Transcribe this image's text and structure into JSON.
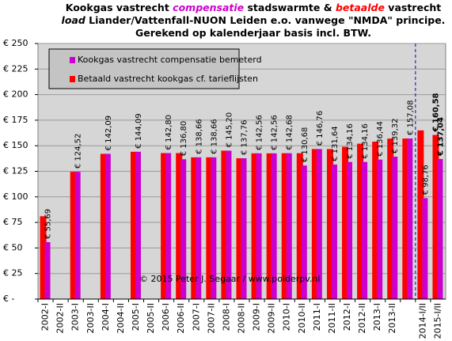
{
  "chart_data": {
    "type": "bar",
    "title": [
      [
        "Kookgas vastrecht ",
        "compensatie",
        " stadswarmte  &  ",
        "betaalde",
        " vastrecht"
      ],
      [
        "load",
        " Liander/Vattenfall-NUON Leiden e.o.  vanwege \"NMDA\"  principe."
      ],
      [
        "Gerekend op kalenderjaar basis incl. BTW."
      ]
    ],
    "annotation": "© 2015 Peter J. Segaar / www.polderpv.nl",
    "categories": [
      "2002-I",
      "2002-II",
      "2003-I",
      "2003-II",
      "2004-I",
      "2004-II",
      "2005-I",
      "2005-II",
      "2006-I",
      "2006-II",
      "2007-I",
      "2007-II",
      "2008-I",
      "2008-II",
      "2009-I",
      "2009-II",
      "2010-I",
      "2010-II",
      "2011-I",
      "2011-II",
      "2012-I",
      "2012-II",
      "2013-I",
      "2013-II",
      null,
      "2014-I/II",
      "2015-I/II"
    ],
    "series": [
      {
        "name": "Kookgas vastrecht compensatie bemeterd",
        "color": "#cc00cc",
        "values": [
          55.69,
          null,
          124.52,
          null,
          142.09,
          null,
          144.09,
          null,
          142.8,
          136.8,
          138.66,
          138.66,
          145.2,
          137.76,
          142.56,
          142.56,
          142.68,
          130.68,
          146.76,
          131.64,
          134.16,
          134.16,
          136.44,
          139.32,
          157.08,
          98.76,
          137.04
        ],
        "value_labels": [
          "€ 55,69",
          null,
          "€ 124,52",
          null,
          "€ 142,09",
          null,
          "€ 144,09",
          null,
          "€ 142,80",
          "€ 136,80",
          "€ 138,66",
          "€ 138,66",
          "€ 145,20",
          "€ 137,76",
          "€ 142,56",
          "€ 142,56",
          "€ 142,68",
          "€ 130,68",
          "€ 146,76",
          "€ 131,64",
          "€ 134,16",
          "€ 134,16",
          "€ 136,44",
          "€ 139,32",
          "€ 157,08",
          "€ 98,76",
          "€ 137,04"
        ]
      },
      {
        "name": "Betaald vastrecht kookgas cf. tarieflijsten",
        "color": "#ff0000",
        "values": [
          81,
          null,
          124.52,
          null,
          142.09,
          null,
          144.09,
          null,
          142.8,
          142.8,
          138.66,
          138.66,
          145.2,
          137.76,
          142.56,
          142.56,
          142.68,
          142.68,
          146.76,
          146.76,
          149,
          152,
          154,
          157,
          157.08,
          165,
          160.58
        ],
        "value_labels": [
          null,
          null,
          null,
          null,
          null,
          null,
          null,
          null,
          null,
          null,
          null,
          null,
          null,
          null,
          null,
          null,
          null,
          null,
          null,
          null,
          null,
          null,
          null,
          null,
          null,
          null,
          "€ 160,58"
        ]
      }
    ],
    "ylim": [
      0,
      250
    ],
    "yticks": [
      {
        "value": 0,
        "label": "€ -"
      },
      {
        "value": 25,
        "label": "€ 25"
      },
      {
        "value": 50,
        "label": "€ 50"
      },
      {
        "value": 75,
        "label": "€ 75"
      },
      {
        "value": 100,
        "label": "€ 100"
      },
      {
        "value": 125,
        "label": "€ 125"
      },
      {
        "value": 150,
        "label": "€ 150"
      },
      {
        "value": 175,
        "label": "€ 175"
      },
      {
        "value": 200,
        "label": "€ 200"
      },
      {
        "value": 225,
        "label": "€ 225"
      },
      {
        "value": 250,
        "label": "€ 250"
      }
    ],
    "grid": true
  }
}
